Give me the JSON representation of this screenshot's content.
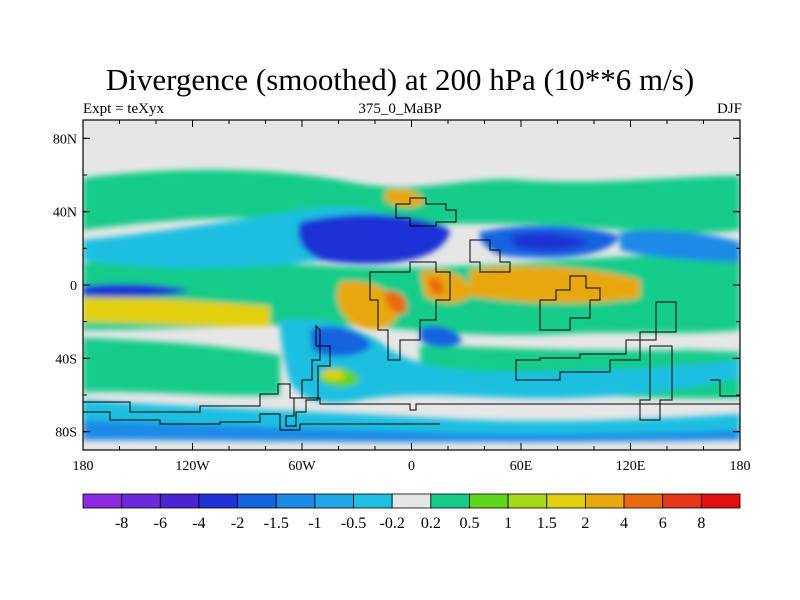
{
  "title": "Divergence (smoothed) at 200 hPa (10**6 m/s)",
  "left_label": "Expt = teXyx",
  "center_label": "375_0_MaBP",
  "right_label": "DJF",
  "lat_ticks": [
    "80N",
    "40N",
    "0",
    "40S",
    "80S"
  ],
  "lon_ticks": [
    "180",
    "120W",
    "60W",
    "0",
    "60E",
    "120E",
    "180"
  ],
  "colorbar": {
    "labels": [
      "-8",
      "-6",
      "-4",
      "-2",
      "-1.5",
      "-1",
      "-0.5",
      "-0.2",
      "0.2",
      "0.5",
      "1",
      "1.5",
      "2",
      "4",
      "6",
      "8"
    ],
    "colors": [
      "#8a2be2",
      "#6b2ad9",
      "#4b24d1",
      "#1f32d6",
      "#1464e0",
      "#1a8ae6",
      "#1fa7e6",
      "#1fbfe0",
      "#e6e6e6",
      "#13cc8a",
      "#5fd41e",
      "#a8d81a",
      "#e2cf10",
      "#e8a810",
      "#ea6a10",
      "#e8361a",
      "#e20f0f"
    ]
  },
  "field_colors": {
    "neutral": "#e6e6e6",
    "weak_pos": "#13cc8a",
    "green": "#5fd41e",
    "yellow": "#e2cf10",
    "orange": "#e8a810",
    "red_orange": "#ea6a10",
    "weak_neg": "#1fbfe0",
    "blue_light": "#1a8ae6",
    "blue": "#1464e0",
    "blue_dark": "#1f32d6"
  }
}
